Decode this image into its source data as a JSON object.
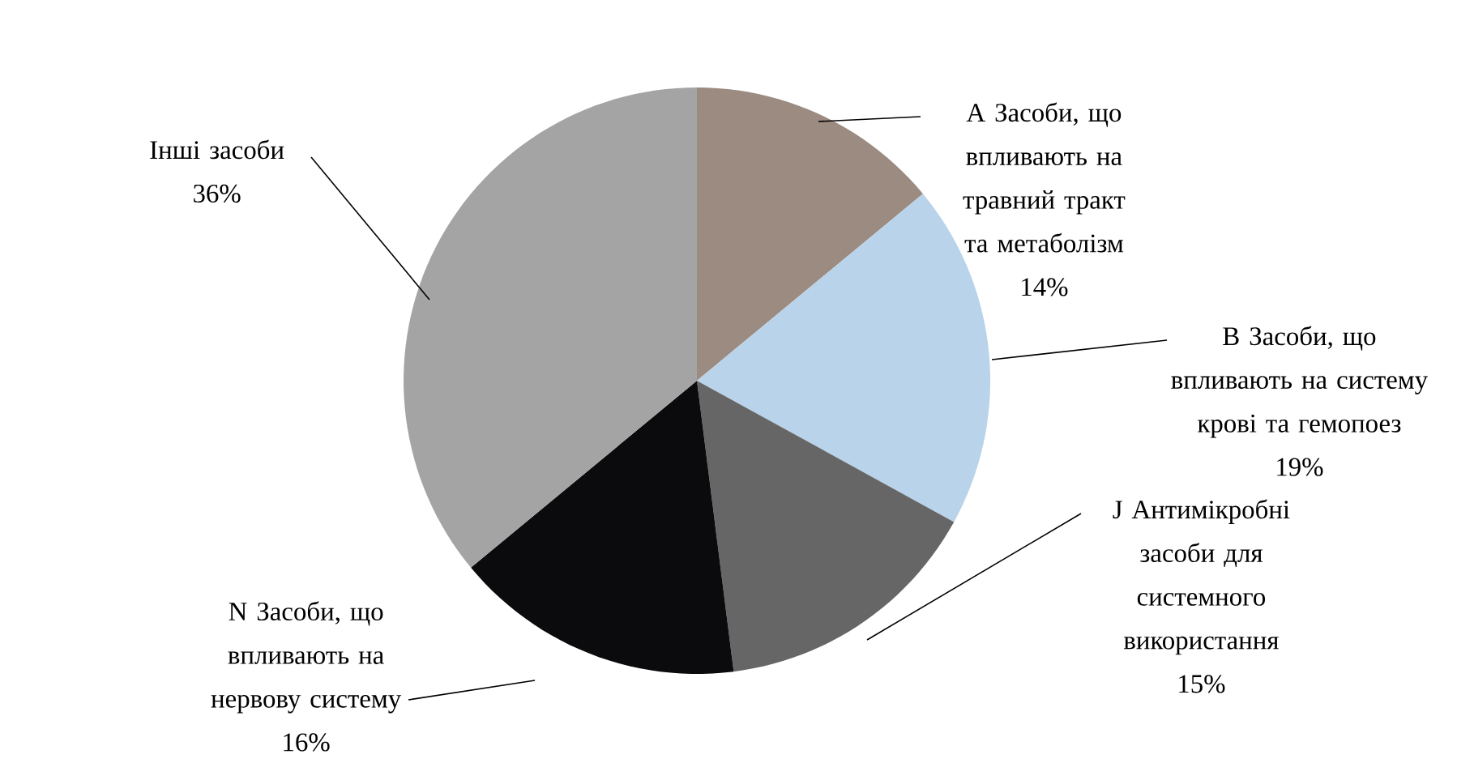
{
  "chart_data": {
    "type": "pie",
    "categories": [
      "A Засоби, що впливають на травний тракт та метаболізм",
      "B Засоби, що впливають на систему крові та гемопоез",
      "J Антимікробні засоби для системного використання",
      "N Засоби, що впливають на нервову систему",
      "Інші засоби"
    ],
    "values": [
      14,
      19,
      15,
      16,
      36
    ],
    "value_labels": [
      "14%",
      "19%",
      "15%",
      "16%",
      "36%"
    ],
    "colors": [
      "#9b8b80",
      "#b9d3ea",
      "#666666",
      "#0b0b0d",
      "#a4a4a4"
    ]
  }
}
